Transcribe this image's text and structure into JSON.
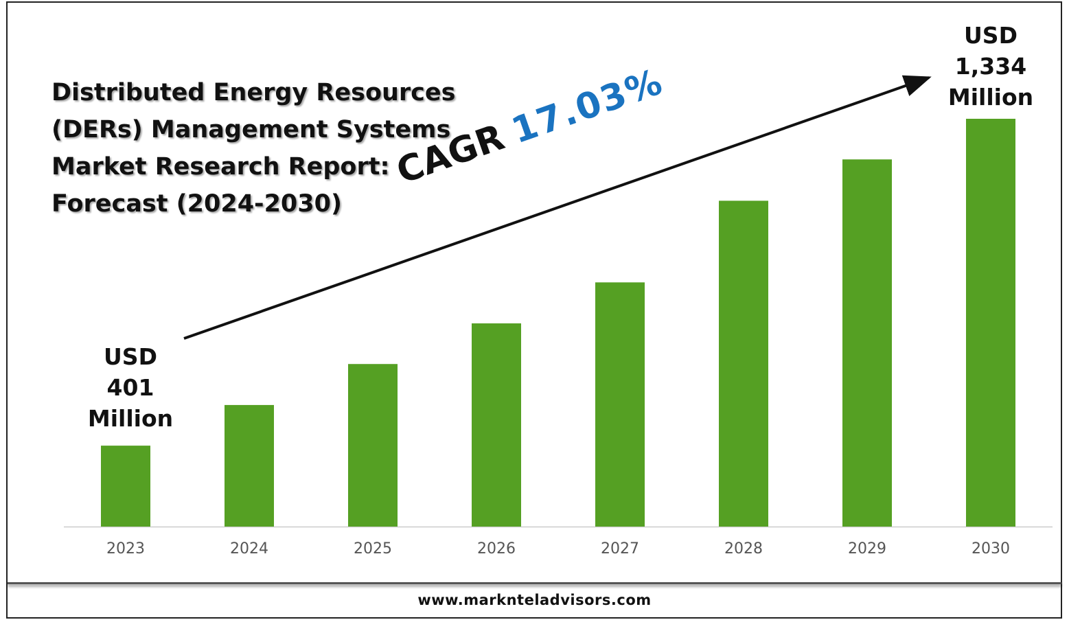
{
  "title_lines": [
    "Distributed Energy Resources",
    "(DERs) Management Systems",
    "Market Research Report:",
    "Forecast (2024-2030)"
  ],
  "cagr": {
    "label": "CAGR",
    "value": "17.03%"
  },
  "start_label": [
    "USD",
    "401",
    "Million"
  ],
  "end_label": [
    "USD",
    "1,334",
    "Million"
  ],
  "footer": "www.marknteladvisors.com",
  "colors": {
    "bar": "#55a023",
    "cagr": "#1a73c0",
    "axis": "#cccccc",
    "tick": "#555555"
  },
  "chart_data": {
    "type": "bar",
    "title": "Distributed Energy Resources (DERs) Management Systems Market Research Report: Forecast (2024-2030)",
    "xlabel": "",
    "ylabel": "USD Million",
    "categories": [
      "2023",
      "2024",
      "2025",
      "2026",
      "2027",
      "2028",
      "2029",
      "2030"
    ],
    "values": [
      401,
      517,
      634,
      750,
      867,
      1100,
      1218,
      1334
    ],
    "ylim": [
      170,
      1334
    ],
    "grid": false,
    "annotations": [
      "USD 401 Million",
      "USD 1,334 Million",
      "CAGR 17.03%"
    ]
  }
}
